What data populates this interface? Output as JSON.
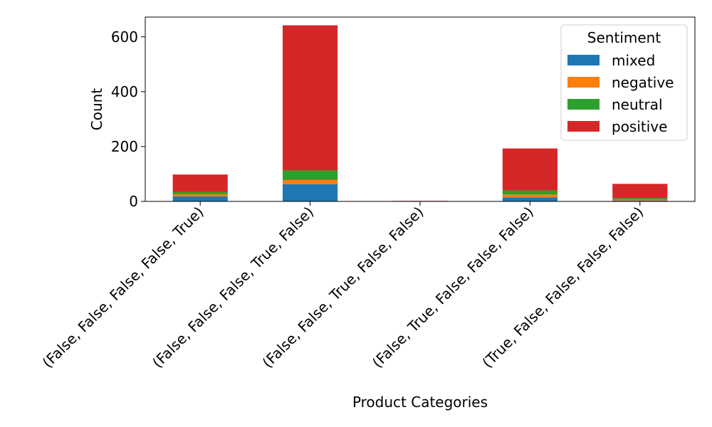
{
  "chart_data": {
    "type": "bar",
    "stacked": true,
    "title": "",
    "xlabel": "Product Categories",
    "ylabel": "Count",
    "ylim": [
      0,
      672
    ],
    "yticks": [
      0,
      200,
      400,
      600
    ],
    "categories": [
      "(False, False, False, False, True)",
      "(False, False, False, True, False)",
      "(False, False, True, False, False)",
      "(False, True, False, False, False)",
      "(True, False, False, False, False)"
    ],
    "series": [
      {
        "name": "mixed",
        "color": "#1f77b4",
        "values": [
          18,
          63,
          1,
          15,
          3
        ]
      },
      {
        "name": "negative",
        "color": "#ff7f0e",
        "values": [
          8,
          15,
          0,
          10,
          3
        ]
      },
      {
        "name": "neutral",
        "color": "#2ca02c",
        "values": [
          8,
          35,
          0,
          15,
          6
        ]
      },
      {
        "name": "positive",
        "color": "#d62728",
        "values": [
          64,
          529,
          1,
          153,
          52
        ]
      }
    ],
    "legend": {
      "title": "Sentiment",
      "position": "top-right"
    },
    "grid": false
  }
}
